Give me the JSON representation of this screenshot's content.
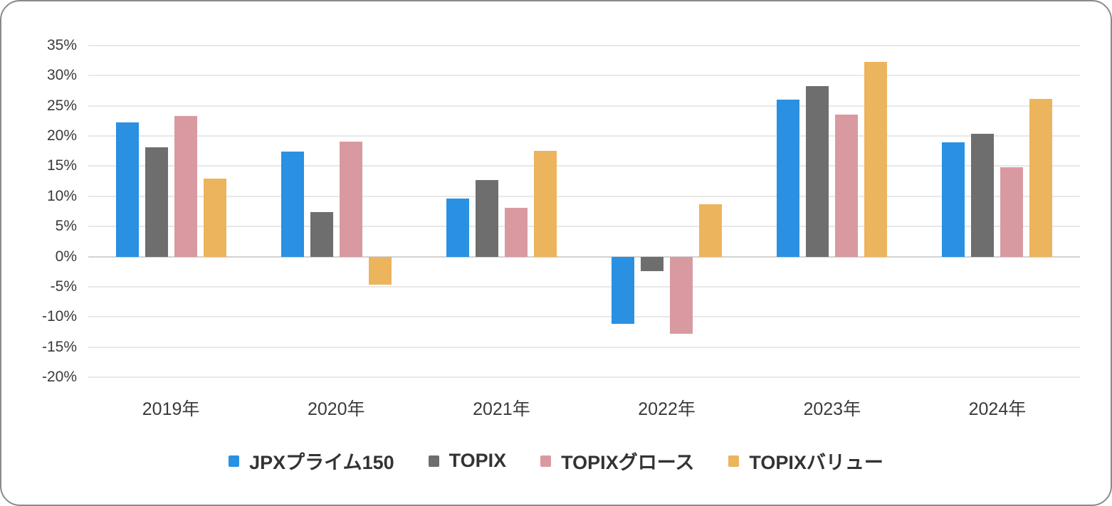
{
  "chart_data": {
    "type": "bar",
    "title": "",
    "categories": [
      "2019年",
      "2020年",
      "2021年",
      "2022年",
      "2023年",
      "2024年"
    ],
    "series": [
      {
        "name": "JPXプライム150",
        "color": "#2990e2",
        "values": [
          22.3,
          17.4,
          9.6,
          -11.1,
          26.0,
          19.0
        ]
      },
      {
        "name": "TOPIX",
        "color": "#6e6e6e",
        "values": [
          18.1,
          7.4,
          12.7,
          -2.4,
          28.3,
          20.4
        ]
      },
      {
        "name": "TOPIXグロース",
        "color": "#d89aa0",
        "values": [
          23.3,
          19.1,
          8.1,
          -12.8,
          23.5,
          14.8
        ]
      },
      {
        "name": "TOPIXバリュー",
        "color": "#ecb45c",
        "values": [
          12.9,
          -4.6,
          17.5,
          8.7,
          32.3,
          26.1
        ]
      }
    ],
    "y_ticks": [
      35,
      30,
      25,
      20,
      15,
      10,
      5,
      0,
      -5,
      -10,
      -15,
      -20
    ],
    "y_tick_labels": [
      "35%",
      "30%",
      "25%",
      "20%",
      "15%",
      "10%",
      "5%",
      "0%",
      "-5%",
      "-10%",
      "-15%",
      "-20%"
    ],
    "ylim": [
      -20,
      35
    ],
    "xlabel": "",
    "ylabel": "",
    "grid": "horizontal",
    "legend_position": "bottom",
    "value_format": "percent"
  },
  "colors": {
    "grid": "#e8e8e8",
    "zero_line": "#d2d2d2",
    "tick_text": "#3a3a3a",
    "legend_text": "#333333",
    "card_border": "#8a8a8a",
    "background": "#ffffff"
  }
}
